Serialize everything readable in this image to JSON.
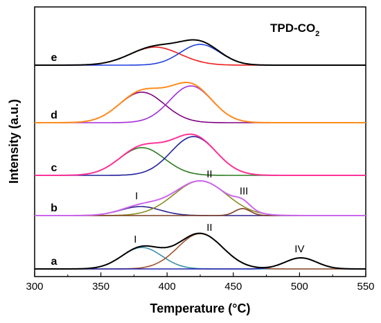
{
  "chart_data": {
    "type": "line",
    "title_main": "TPD-CO",
    "title_sub": "2",
    "xlabel": "Temperature (°C)",
    "ylabel": "Intensity (a.u.)",
    "xlim": [
      300,
      550
    ],
    "x_ticks": [
      "300",
      "350",
      "400",
      "450",
      "500",
      "550"
    ],
    "y_ticks_shown": false,
    "grid": false,
    "stacked_offsets": true,
    "panels": [
      {
        "label": "a",
        "curves": [
          {
            "color": "#000000",
            "kind": "envelope",
            "components": [
              0,
              1,
              2
            ]
          },
          {
            "color": "#3a8fa8",
            "kind": "gaussian",
            "center": 381,
            "height": 31,
            "sigma": 15
          },
          {
            "color": "#a0522d",
            "kind": "gaussian",
            "center": 425,
            "height": 51,
            "sigma": 17
          },
          {
            "color": "#1f1fa8",
            "kind": "gaussian",
            "center": 501,
            "height": 16,
            "sigma": 12
          }
        ],
        "peak_labels": [
          {
            "text": "I",
            "x": 376
          },
          {
            "text": "II",
            "x": 432
          },
          {
            "text": "IV",
            "x": 500
          }
        ]
      },
      {
        "label": "b",
        "curves": [
          {
            "color": "#cc66ee",
            "kind": "envelope",
            "components": [
              0,
              1,
              2
            ]
          },
          {
            "color": "#2b1f8a",
            "kind": "gaussian",
            "center": 380,
            "height": 13,
            "sigma": 15
          },
          {
            "color": "#8a8a1f",
            "kind": "gaussian",
            "center": 425,
            "height": 50,
            "sigma": 20
          },
          {
            "color": "#7a3b1e",
            "kind": "gaussian",
            "center": 457,
            "height": 10,
            "sigma": 6
          }
        ],
        "peak_labels": [
          {
            "text": "I",
            "x": 377
          },
          {
            "text": "II",
            "x": 432
          },
          {
            "text": "III",
            "x": 458
          }
        ]
      },
      {
        "label": "c",
        "curves": [
          {
            "color": "#ff3399",
            "kind": "envelope",
            "components": [
              0,
              1
            ]
          },
          {
            "color": "#2a7a1f",
            "kind": "gaussian",
            "center": 381,
            "height": 40,
            "sigma": 17
          },
          {
            "color": "#1f1f99",
            "kind": "gaussian",
            "center": 420,
            "height": 56,
            "sigma": 17
          }
        ],
        "peak_labels": []
      },
      {
        "label": "d",
        "curves": [
          {
            "color": "#ff8c1a",
            "kind": "envelope",
            "components": [
              0,
              1
            ]
          },
          {
            "color": "#800080",
            "kind": "gaussian",
            "center": 381,
            "height": 44,
            "sigma": 17
          },
          {
            "color": "#a32cd9",
            "kind": "gaussian",
            "center": 418,
            "height": 53,
            "sigma": 16
          }
        ],
        "peak_labels": []
      },
      {
        "label": "e",
        "curves": [
          {
            "color": "#000000",
            "kind": "envelope",
            "components": [
              0,
              1
            ]
          },
          {
            "color": "#ee1c1c",
            "kind": "gaussian",
            "center": 391,
            "height": 26,
            "sigma": 19
          },
          {
            "color": "#1f3fdd",
            "kind": "gaussian",
            "center": 425,
            "height": 30,
            "sigma": 15
          }
        ],
        "peak_labels": []
      }
    ]
  }
}
